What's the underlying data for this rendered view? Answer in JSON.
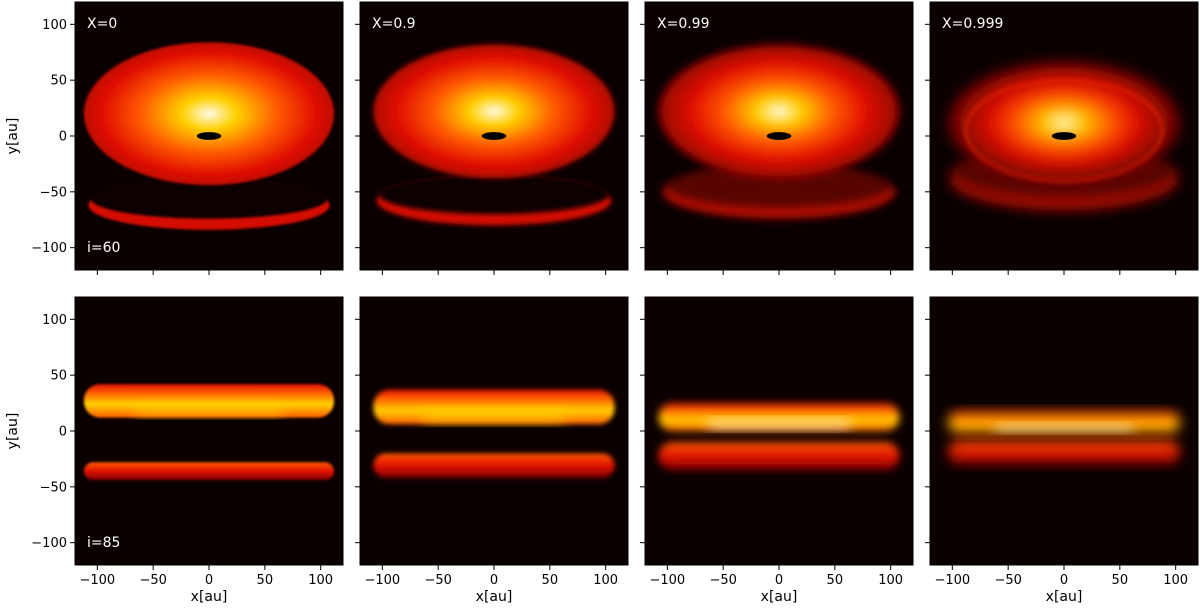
{
  "chart_data": {
    "type": "heatmap",
    "colormap": "hot",
    "grid": false,
    "xlabel": "x[au]",
    "ylabel": "y[au]",
    "xlim": [
      -120,
      120
    ],
    "ylim": [
      -120,
      120
    ],
    "xticks": [
      -100,
      -50,
      0,
      50,
      100
    ],
    "yticks": [
      100,
      50,
      0,
      -50,
      -100
    ],
    "xtick_labels": [
      "−100",
      "−50",
      "0",
      "50",
      "100"
    ],
    "ytick_labels": [
      "100",
      "50",
      "0",
      "−50",
      "−100"
    ],
    "columns": [
      "X=0",
      "X=0.9",
      "X=0.99",
      "X=0.999"
    ],
    "rows": [
      "i=60",
      "i=85"
    ],
    "panels": [
      {
        "row": 0,
        "col": 0,
        "inclination_deg": 60,
        "X": 0
      },
      {
        "row": 0,
        "col": 1,
        "inclination_deg": 60,
        "X": 0.9
      },
      {
        "row": 0,
        "col": 2,
        "inclination_deg": 60,
        "X": 0.99
      },
      {
        "row": 0,
        "col": 3,
        "inclination_deg": 60,
        "X": 0.999
      },
      {
        "row": 1,
        "col": 0,
        "inclination_deg": 85,
        "X": 0
      },
      {
        "row": 1,
        "col": 1,
        "inclination_deg": 85,
        "X": 0.9
      },
      {
        "row": 1,
        "col": 2,
        "inclination_deg": 85,
        "X": 0.99
      },
      {
        "row": 1,
        "col": 3,
        "inclination_deg": 85,
        "X": 0.999
      }
    ]
  },
  "colors": {
    "background": "#0b0000",
    "dark_red": "#7a0000",
    "red": "#e01000",
    "orange": "#ff5a00",
    "yellow": "#ffd000",
    "white": "#fffbe8"
  }
}
